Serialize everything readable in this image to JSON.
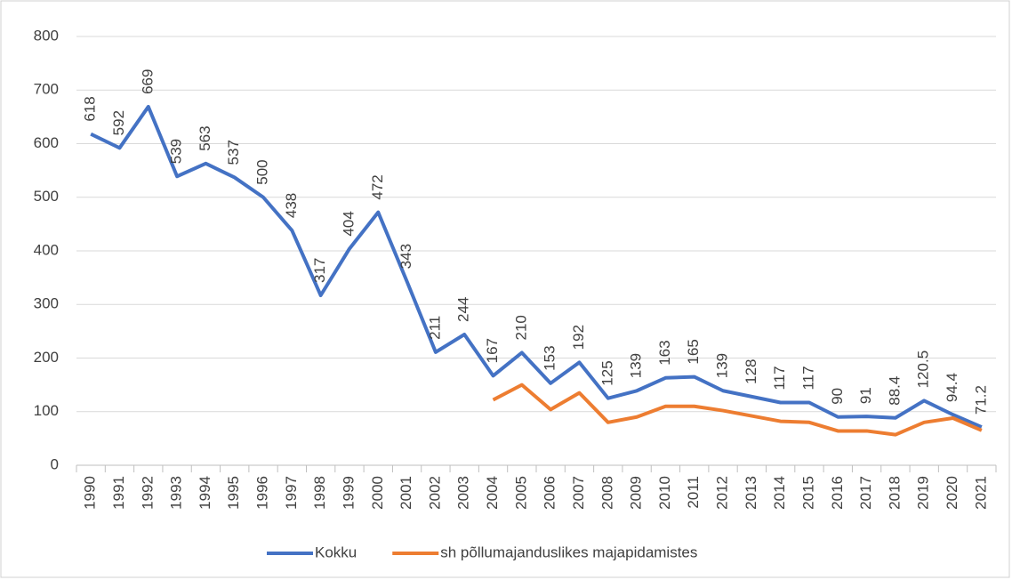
{
  "chart_data": {
    "type": "line",
    "categories": [
      "1990",
      "1991",
      "1992",
      "1993",
      "1994",
      "1995",
      "1996",
      "1997",
      "1998",
      "1999",
      "2000",
      "2001",
      "2002",
      "2003",
      "2004",
      "2005",
      "2006",
      "2007",
      "2008",
      "2009",
      "2010",
      "2011",
      "2012",
      "2013",
      "2014",
      "2015",
      "2016",
      "2017",
      "2018",
      "2019",
      "2020",
      "2021"
    ],
    "series": [
      {
        "name": "Kokku",
        "color": "#4472c4",
        "data_labels": true,
        "values": [
          618,
          592,
          669,
          539,
          563,
          537,
          500,
          438,
          317,
          404,
          472,
          343,
          211,
          244,
          167,
          210,
          153,
          192,
          125,
          139,
          163,
          165,
          139,
          128,
          117,
          117,
          90,
          91,
          88.4,
          120.5,
          94.4,
          71.2
        ]
      },
      {
        "name": "sh põllumajanduslikes majapidamistes",
        "color": "#ed7d31",
        "data_labels": false,
        "values": [
          null,
          null,
          null,
          null,
          null,
          null,
          null,
          null,
          null,
          null,
          null,
          null,
          null,
          null,
          122,
          150,
          104,
          135,
          80,
          90,
          110,
          110,
          102,
          92,
          82,
          80,
          64,
          64,
          57,
          80,
          88,
          65
        ]
      }
    ],
    "ylim": [
      0,
      800
    ],
    "yticks": [
      0,
      100,
      200,
      300,
      400,
      500,
      600,
      700,
      800
    ],
    "grid": true,
    "legend": "bottom"
  }
}
